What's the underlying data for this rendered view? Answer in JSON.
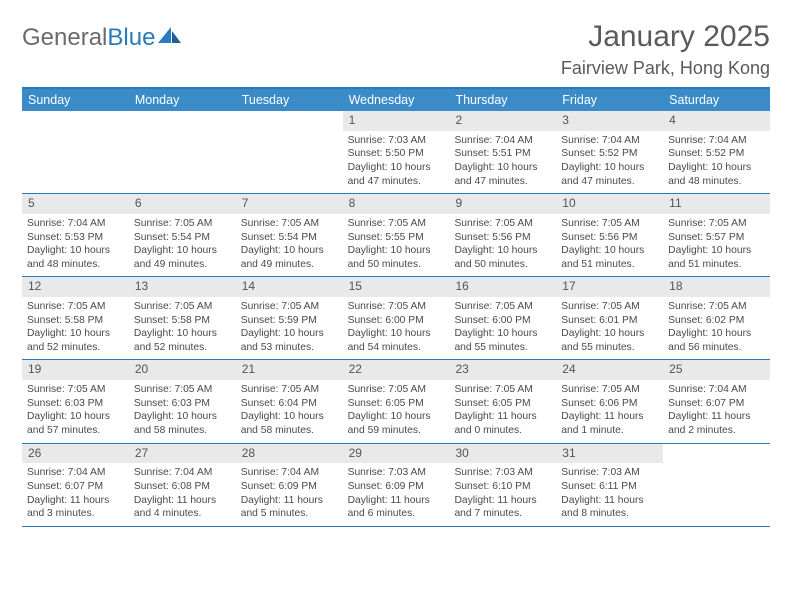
{
  "brand": {
    "part1": "General",
    "part2": "Blue"
  },
  "title": "January 2025",
  "location": "Fairview Park, Hong Kong",
  "day_headers": [
    "Sunday",
    "Monday",
    "Tuesday",
    "Wednesday",
    "Thursday",
    "Friday",
    "Saturday"
  ],
  "colors": {
    "header_bar": "#3b8bc9",
    "rule": "#2a7ac0",
    "daynum_bg": "#e9e9e9",
    "text": "#4a4a4a"
  },
  "weeks": [
    [
      null,
      null,
      null,
      {
        "n": "1",
        "sr": "7:03 AM",
        "ss": "5:50 PM",
        "dl": "10 hours and 47 minutes."
      },
      {
        "n": "2",
        "sr": "7:04 AM",
        "ss": "5:51 PM",
        "dl": "10 hours and 47 minutes."
      },
      {
        "n": "3",
        "sr": "7:04 AM",
        "ss": "5:52 PM",
        "dl": "10 hours and 47 minutes."
      },
      {
        "n": "4",
        "sr": "7:04 AM",
        "ss": "5:52 PM",
        "dl": "10 hours and 48 minutes."
      }
    ],
    [
      {
        "n": "5",
        "sr": "7:04 AM",
        "ss": "5:53 PM",
        "dl": "10 hours and 48 minutes."
      },
      {
        "n": "6",
        "sr": "7:05 AM",
        "ss": "5:54 PM",
        "dl": "10 hours and 49 minutes."
      },
      {
        "n": "7",
        "sr": "7:05 AM",
        "ss": "5:54 PM",
        "dl": "10 hours and 49 minutes."
      },
      {
        "n": "8",
        "sr": "7:05 AM",
        "ss": "5:55 PM",
        "dl": "10 hours and 50 minutes."
      },
      {
        "n": "9",
        "sr": "7:05 AM",
        "ss": "5:56 PM",
        "dl": "10 hours and 50 minutes."
      },
      {
        "n": "10",
        "sr": "7:05 AM",
        "ss": "5:56 PM",
        "dl": "10 hours and 51 minutes."
      },
      {
        "n": "11",
        "sr": "7:05 AM",
        "ss": "5:57 PM",
        "dl": "10 hours and 51 minutes."
      }
    ],
    [
      {
        "n": "12",
        "sr": "7:05 AM",
        "ss": "5:58 PM",
        "dl": "10 hours and 52 minutes."
      },
      {
        "n": "13",
        "sr": "7:05 AM",
        "ss": "5:58 PM",
        "dl": "10 hours and 52 minutes."
      },
      {
        "n": "14",
        "sr": "7:05 AM",
        "ss": "5:59 PM",
        "dl": "10 hours and 53 minutes."
      },
      {
        "n": "15",
        "sr": "7:05 AM",
        "ss": "6:00 PM",
        "dl": "10 hours and 54 minutes."
      },
      {
        "n": "16",
        "sr": "7:05 AM",
        "ss": "6:00 PM",
        "dl": "10 hours and 55 minutes."
      },
      {
        "n": "17",
        "sr": "7:05 AM",
        "ss": "6:01 PM",
        "dl": "10 hours and 55 minutes."
      },
      {
        "n": "18",
        "sr": "7:05 AM",
        "ss": "6:02 PM",
        "dl": "10 hours and 56 minutes."
      }
    ],
    [
      {
        "n": "19",
        "sr": "7:05 AM",
        "ss": "6:03 PM",
        "dl": "10 hours and 57 minutes."
      },
      {
        "n": "20",
        "sr": "7:05 AM",
        "ss": "6:03 PM",
        "dl": "10 hours and 58 minutes."
      },
      {
        "n": "21",
        "sr": "7:05 AM",
        "ss": "6:04 PM",
        "dl": "10 hours and 58 minutes."
      },
      {
        "n": "22",
        "sr": "7:05 AM",
        "ss": "6:05 PM",
        "dl": "10 hours and 59 minutes."
      },
      {
        "n": "23",
        "sr": "7:05 AM",
        "ss": "6:05 PM",
        "dl": "11 hours and 0 minutes."
      },
      {
        "n": "24",
        "sr": "7:05 AM",
        "ss": "6:06 PM",
        "dl": "11 hours and 1 minute."
      },
      {
        "n": "25",
        "sr": "7:04 AM",
        "ss": "6:07 PM",
        "dl": "11 hours and 2 minutes."
      }
    ],
    [
      {
        "n": "26",
        "sr": "7:04 AM",
        "ss": "6:07 PM",
        "dl": "11 hours and 3 minutes."
      },
      {
        "n": "27",
        "sr": "7:04 AM",
        "ss": "6:08 PM",
        "dl": "11 hours and 4 minutes."
      },
      {
        "n": "28",
        "sr": "7:04 AM",
        "ss": "6:09 PM",
        "dl": "11 hours and 5 minutes."
      },
      {
        "n": "29",
        "sr": "7:03 AM",
        "ss": "6:09 PM",
        "dl": "11 hours and 6 minutes."
      },
      {
        "n": "30",
        "sr": "7:03 AM",
        "ss": "6:10 PM",
        "dl": "11 hours and 7 minutes."
      },
      {
        "n": "31",
        "sr": "7:03 AM",
        "ss": "6:11 PM",
        "dl": "11 hours and 8 minutes."
      },
      null
    ]
  ]
}
